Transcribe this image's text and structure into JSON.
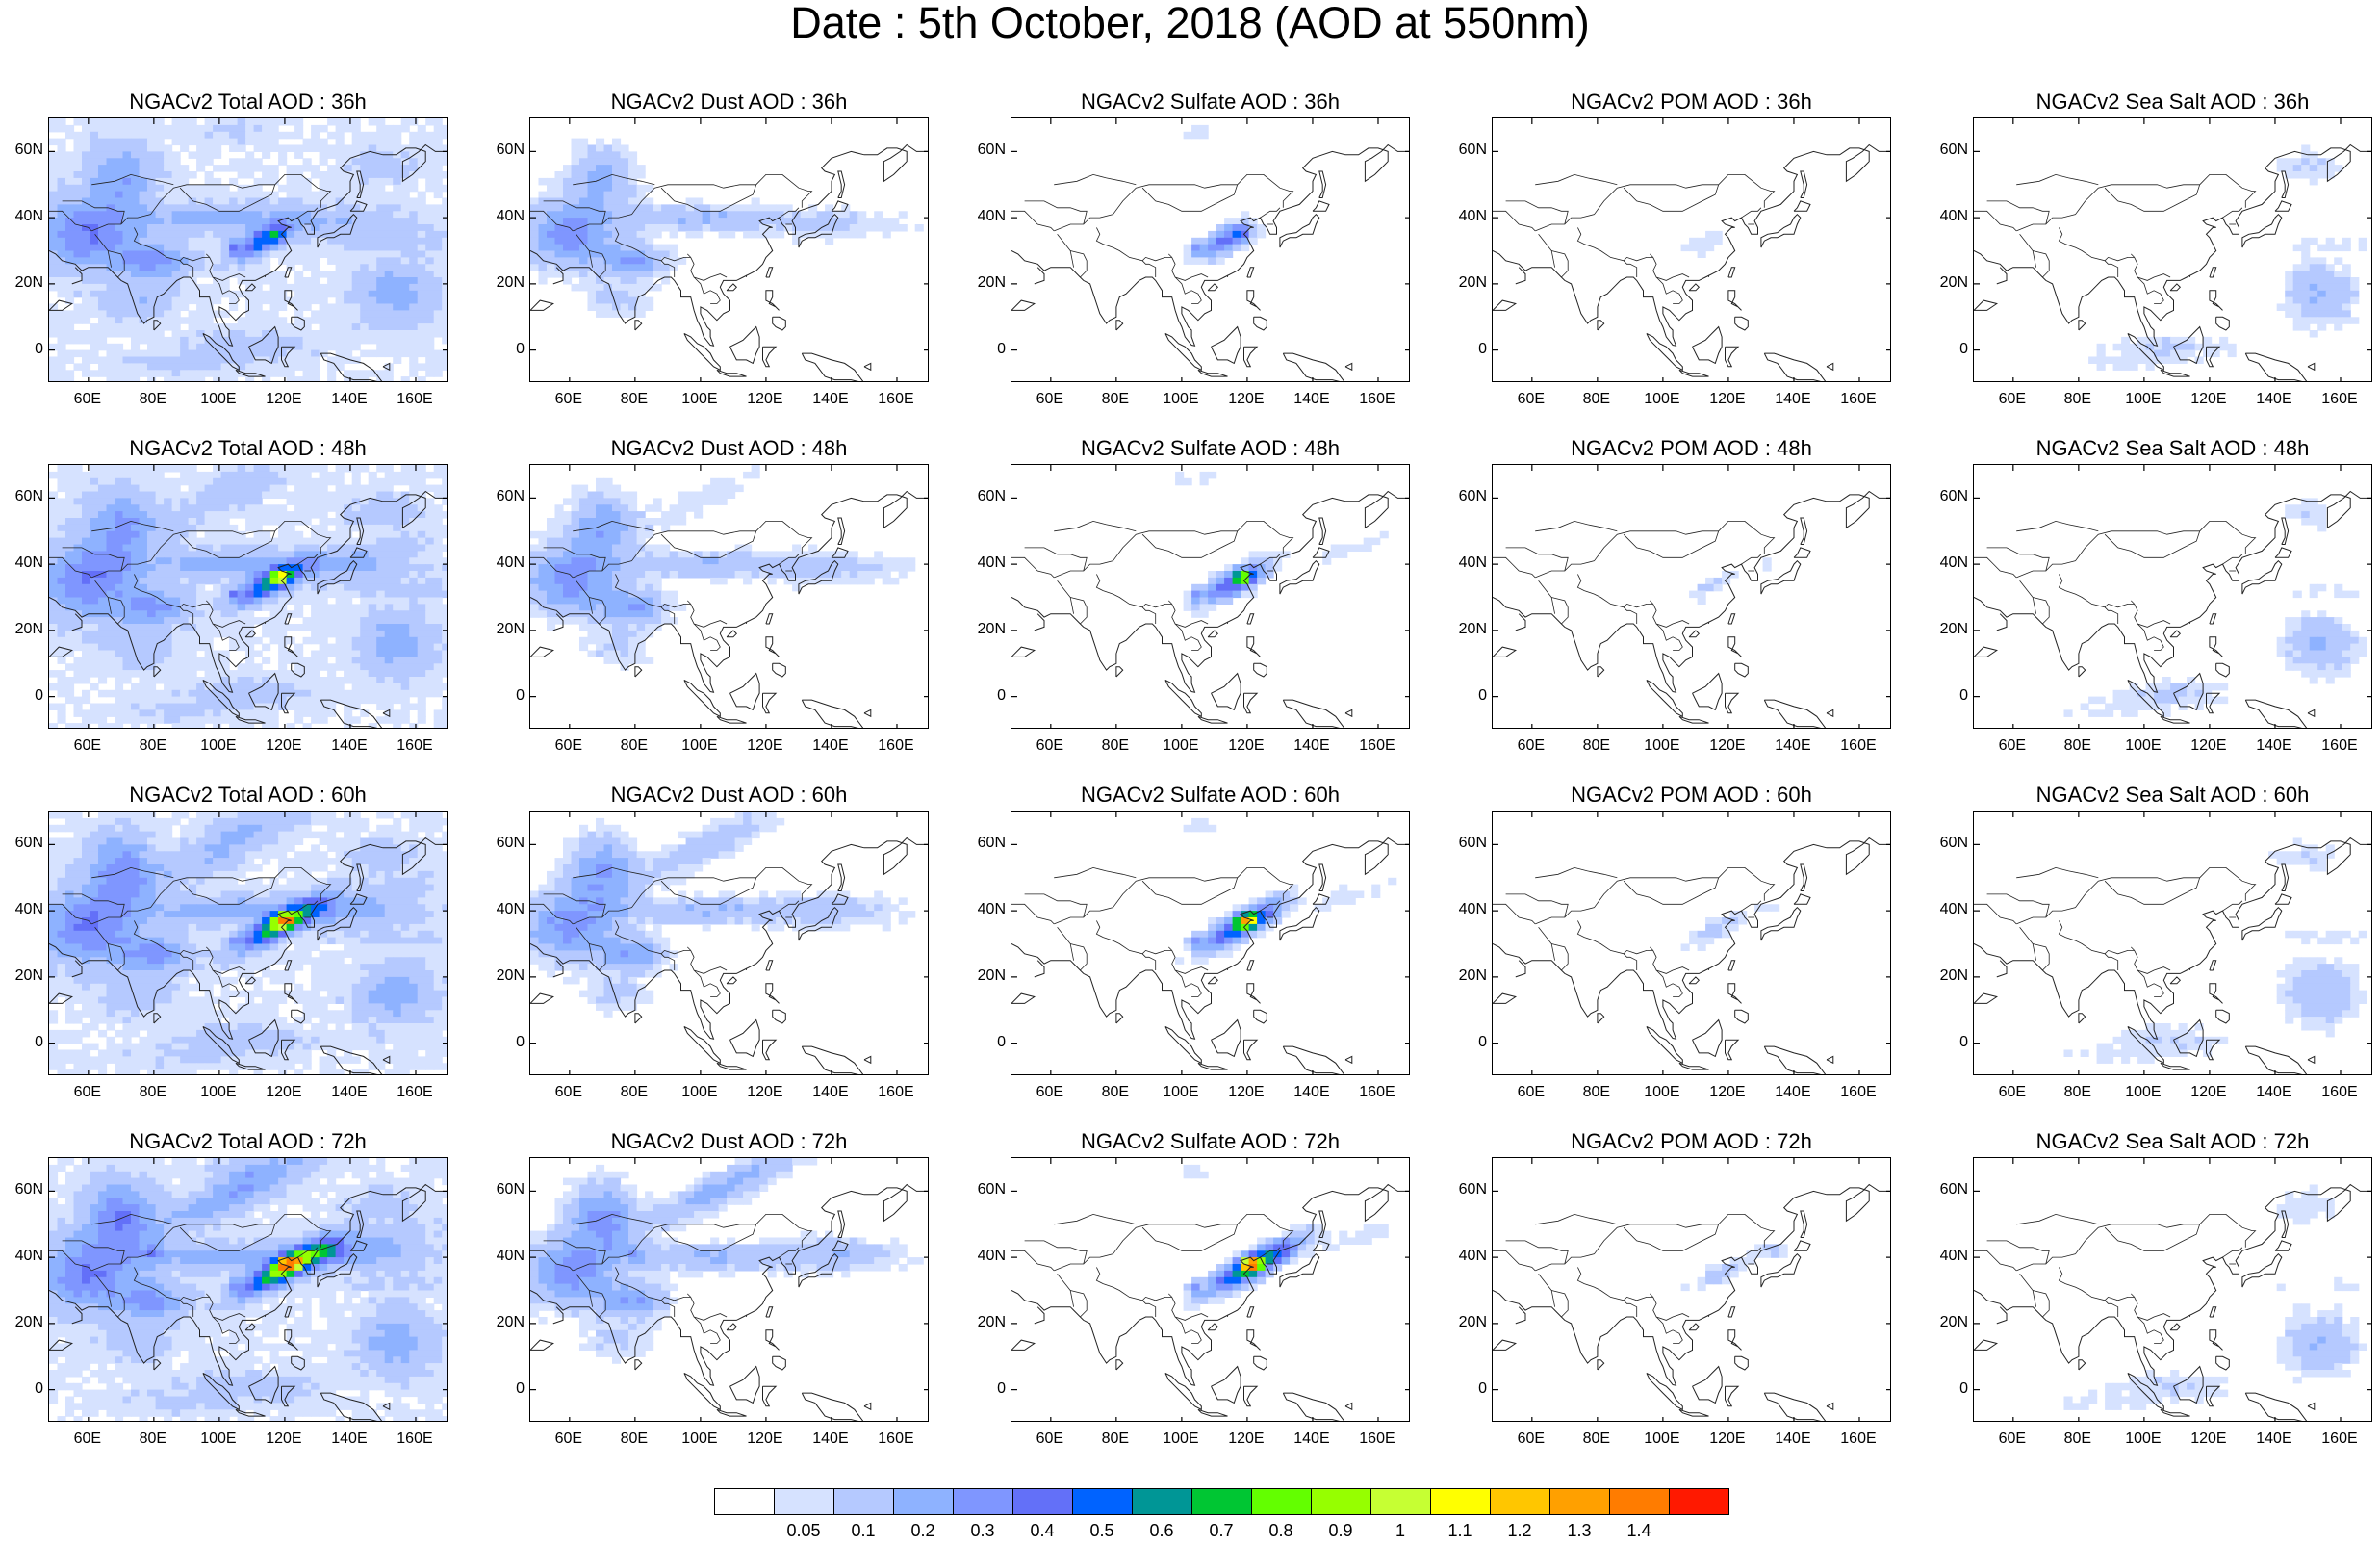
{
  "page_title": "Date : 5th October, 2018 (AOD at 550nm)",
  "map": {
    "lon_range": [
      48,
      170
    ],
    "lat_range": [
      -10,
      70
    ],
    "x_ticks": [
      "60E",
      "80E",
      "100E",
      "120E",
      "140E",
      "160E"
    ],
    "y_ticks": [
      "60N",
      "40N",
      "20N",
      "0"
    ]
  },
  "colorbar": {
    "colors": [
      "#ffffff",
      "#d6e2ff",
      "#b5c9ff",
      "#8eb2ff",
      "#7f96ff",
      "#6370f8",
      "#0063ff",
      "#009696",
      "#00c633",
      "#63ff00",
      "#96ff00",
      "#c6ff33",
      "#ffff00",
      "#ffc600",
      "#ffa000",
      "#ff7c00",
      "#ff1900"
    ],
    "labels": [
      "0.05",
      "0.1",
      "0.2",
      "0.3",
      "0.4",
      "0.5",
      "0.6",
      "0.7",
      "0.8",
      "0.9",
      "1",
      "1.1",
      "1.2",
      "1.3",
      "1.4"
    ]
  },
  "panels": [
    {
      "title": "NGACv2 Total AOD : 36h",
      "kind": "total",
      "fc": 0
    },
    {
      "title": "NGACv2 Dust AOD : 36h",
      "kind": "dust",
      "fc": 0
    },
    {
      "title": "NGACv2 Sulfate AOD : 36h",
      "kind": "sulfate",
      "fc": 0
    },
    {
      "title": "NGACv2 POM AOD : 36h",
      "kind": "pom",
      "fc": 0
    },
    {
      "title": "NGACv2 Sea Salt AOD : 36h",
      "kind": "seasalt",
      "fc": 0
    },
    {
      "title": "NGACv2 Total AOD : 48h",
      "kind": "total",
      "fc": 1
    },
    {
      "title": "NGACv2 Dust AOD : 48h",
      "kind": "dust",
      "fc": 1
    },
    {
      "title": "NGACv2 Sulfate AOD : 48h",
      "kind": "sulfate",
      "fc": 1
    },
    {
      "title": "NGACv2 POM AOD : 48h",
      "kind": "pom",
      "fc": 1
    },
    {
      "title": "NGACv2 Sea Salt AOD : 48h",
      "kind": "seasalt",
      "fc": 1
    },
    {
      "title": "NGACv2 Total AOD : 60h",
      "kind": "total",
      "fc": 2
    },
    {
      "title": "NGACv2 Dust AOD : 60h",
      "kind": "dust",
      "fc": 2
    },
    {
      "title": "NGACv2 Sulfate AOD : 60h",
      "kind": "sulfate",
      "fc": 2
    },
    {
      "title": "NGACv2 POM AOD : 60h",
      "kind": "pom",
      "fc": 2
    },
    {
      "title": "NGACv2 Sea Salt AOD : 60h",
      "kind": "seasalt",
      "fc": 2
    },
    {
      "title": "NGACv2 Total AOD : 72h",
      "kind": "total",
      "fc": 3
    },
    {
      "title": "NGACv2 Dust AOD : 72h",
      "kind": "dust",
      "fc": 3
    },
    {
      "title": "NGACv2 Sulfate AOD : 72h",
      "kind": "sulfate",
      "fc": 3
    },
    {
      "title": "NGACv2 POM AOD : 72h",
      "kind": "pom",
      "fc": 3
    },
    {
      "title": "NGACv2 Sea Salt  AOD : 72h",
      "kind": "seasalt",
      "fc": 3
    }
  ]
}
